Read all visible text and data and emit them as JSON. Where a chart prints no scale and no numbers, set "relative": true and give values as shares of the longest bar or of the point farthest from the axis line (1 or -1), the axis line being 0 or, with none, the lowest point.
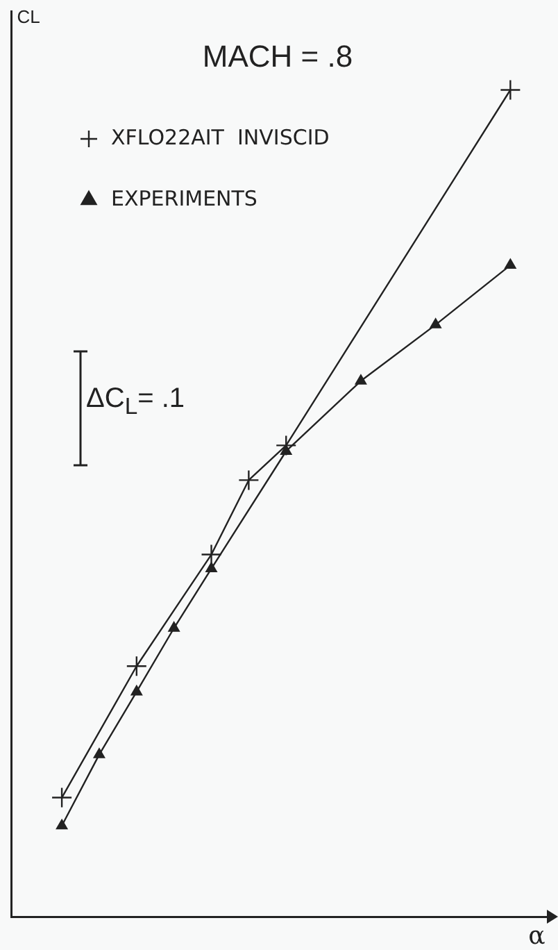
{
  "chart_data": {
    "type": "line",
    "title": "MACH = .8",
    "xlabel": "α",
    "ylabel": "CL",
    "relative": true,
    "tick_labels": false,
    "grid": false,
    "legend": "top left",
    "categories": [
      null,
      null,
      null,
      null,
      null,
      null,
      null,
      null,
      null,
      null,
      null,
      null,
      null
    ],
    "series": [
      {
        "name": "XFLO22AIT  INVISCID",
        "color": "#222222",
        "marker": "cross",
        "values": [
          0.144,
          null,
          0.303,
          null,
          0.438,
          0.528,
          0.57,
          null,
          null,
          null,
          null,
          null,
          1
        ]
      },
      {
        "name": "EXPERIMENTS",
        "color": "#222222",
        "marker": "triangle",
        "values": [
          0.11,
          0.196,
          0.272,
          0.349,
          0.421,
          null,
          0.563,
          null,
          0.648,
          null,
          0.716,
          null,
          0.788
        ]
      }
    ],
    "annotations": [
      "ΔC$_{L}$= .1"
    ]
  }
}
